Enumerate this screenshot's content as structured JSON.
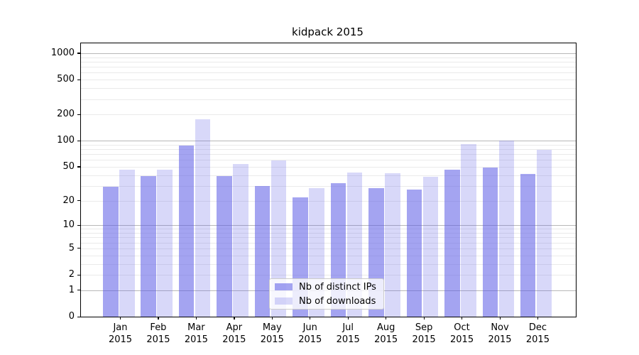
{
  "chart_data": {
    "type": "bar",
    "title": "kidpack 2015",
    "categories": [
      "Jan\n2015",
      "Feb\n2015",
      "Mar\n2015",
      "Apr\n2015",
      "May\n2015",
      "Jun\n2015",
      "Jul\n2015",
      "Aug\n2015",
      "Sep\n2015",
      "Oct\n2015",
      "Nov\n2015",
      "Dec\n2015"
    ],
    "series": [
      {
        "name": "Nb of distinct IPs",
        "values": [
          29,
          39,
          88,
          39,
          30,
          22,
          32,
          28,
          27,
          46,
          49,
          41
        ],
        "color": "rgba(90,90,230,0.55)"
      },
      {
        "name": "Nb of downloads",
        "values": [
          46,
          46,
          175,
          54,
          59,
          28,
          43,
          42,
          38,
          92,
          101,
          79
        ],
        "color": "rgba(90,90,230,0.24)"
      }
    ],
    "xlabel": "",
    "ylabel": "",
    "y_scale": "log1p",
    "yticks": [
      0,
      1,
      2,
      5,
      10,
      20,
      50,
      100,
      200,
      500,
      1000
    ],
    "ylim": [
      0,
      1300
    ],
    "grid": true,
    "legend_position": "lower center"
  },
  "colors": {
    "grid_major": "#b8b8b8",
    "grid_minor": "#eaeaea",
    "spine": "#000000",
    "background": "#ffffff",
    "bar_distinct_ips": "rgba(90,90,230,0.55)",
    "bar_downloads": "rgba(90,90,230,0.24)"
  }
}
